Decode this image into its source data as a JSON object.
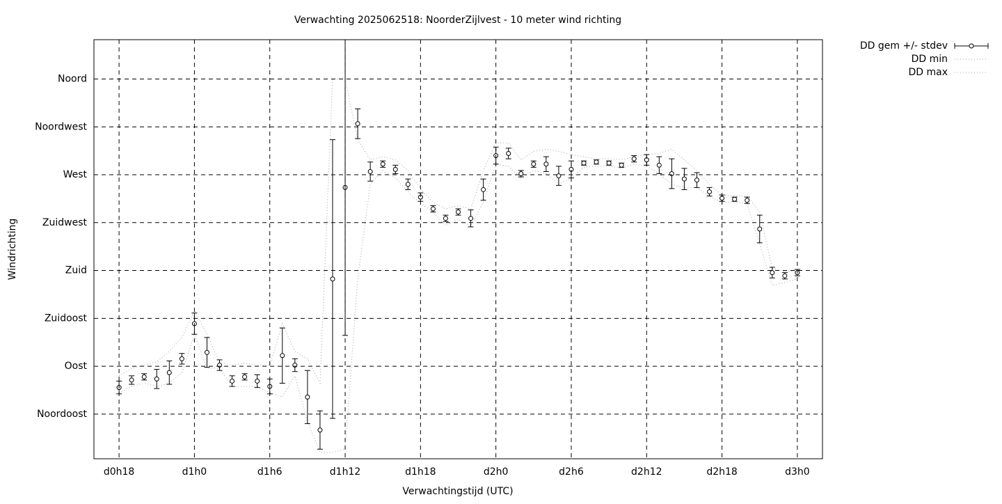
{
  "chart_data": {
    "type": "errorbar",
    "title": "Verwachting 2025062518: NoorderZijlvest - 10 meter wind richting",
    "xlabel": "Verwachtingstijd (UTC)",
    "ylabel": "Windrichting",
    "x": [
      18,
      19,
      20,
      21,
      22,
      23,
      24,
      25,
      26,
      27,
      28,
      29,
      30,
      31,
      32,
      33,
      34,
      35,
      36,
      37,
      38,
      39,
      40,
      41,
      42,
      43,
      44,
      45,
      46,
      47,
      48,
      49,
      50,
      51,
      52,
      53,
      54,
      55,
      56,
      57,
      58,
      59,
      60,
      61,
      62,
      63,
      64,
      65,
      66,
      67,
      68,
      69,
      70,
      71,
      72
    ],
    "series": [
      {
        "name": "DD gem +/- stdev",
        "color": "#000000",
        "style": "errorbar",
        "values": [
          70,
          77,
          80,
          78,
          84,
          97,
          130,
          103,
          91,
          76,
          80,
          76,
          71,
          100,
          91,
          61,
          30,
          172,
          258,
          318,
          273,
          280,
          275,
          261,
          249,
          238,
          229,
          235,
          229,
          256,
          288,
          290,
          271,
          280,
          280,
          269,
          275,
          281,
          282,
          281,
          279,
          285,
          284,
          279,
          271,
          266,
          265,
          254,
          248,
          247,
          246,
          219,
          178,
          175,
          178
        ],
        "errors": [
          6,
          4,
          3,
          9,
          11,
          5,
          10,
          14,
          5,
          5,
          3,
          6,
          7,
          26,
          6,
          25,
          18,
          131,
          139,
          14,
          9,
          3,
          4,
          5,
          4,
          3,
          3,
          3,
          8,
          10,
          8,
          5,
          3,
          3,
          7,
          9,
          8,
          2,
          2,
          2,
          2,
          3,
          5,
          8,
          14,
          10,
          7,
          4,
          3,
          2,
          3,
          13,
          5,
          3,
          3
        ]
      },
      {
        "name": "DD min",
        "color": "#a0a0a0",
        "style": "dotted",
        "values": [
          65,
          71,
          74,
          71,
          74,
          84,
          120,
          88,
          88,
          71,
          71,
          71,
          65,
          61,
          81,
          38,
          9,
          9,
          12,
          173,
          261,
          274,
          267,
          254,
          243,
          235,
          222,
          228,
          222,
          244,
          280,
          278,
          267,
          274,
          271,
          261,
          267,
          277,
          278,
          278,
          276,
          280,
          278,
          271,
          261,
          258,
          258,
          250,
          244,
          244,
          243,
          205,
          166,
          169,
          172
        ]
      },
      {
        "name": "DD max",
        "color": "#a0a0a0",
        "style": "dotted",
        "values": [
          81,
          88,
          91,
          94,
          104,
          117,
          142,
          120,
          94,
          91,
          93,
          91,
          91,
          130,
          104,
          97,
          74,
          360,
          360,
          303,
          284,
          287,
          284,
          274,
          257,
          244,
          238,
          241,
          238,
          274,
          300,
          300,
          284,
          292,
          294,
          292,
          289,
          287,
          285,
          285,
          284,
          287,
          289,
          290,
          294,
          284,
          274,
          261,
          251,
          250,
          250,
          235,
          182,
          179,
          180
        ]
      }
    ],
    "xlim": [
      16,
      74
    ],
    "xticks": [
      {
        "value": 18,
        "label": "d0h18"
      },
      {
        "value": 24,
        "label": "d1h0"
      },
      {
        "value": 30,
        "label": "d1h6"
      },
      {
        "value": 36,
        "label": "d1h12"
      },
      {
        "value": 42,
        "label": "d1h18"
      },
      {
        "value": 48,
        "label": "d2h0"
      },
      {
        "value": 54,
        "label": "d2h6"
      },
      {
        "value": 60,
        "label": "d2h12"
      },
      {
        "value": 66,
        "label": "d2h18"
      },
      {
        "value": 72,
        "label": "d3h0"
      }
    ],
    "ylim": [
      3,
      397
    ],
    "yticks": [
      {
        "value": 45,
        "label": "Noordoost"
      },
      {
        "value": 90,
        "label": "Oost"
      },
      {
        "value": 135,
        "label": "Zuidoost"
      },
      {
        "value": 180,
        "label": "Zuid"
      },
      {
        "value": 225,
        "label": "Zuidwest"
      },
      {
        "value": 270,
        "label": "West"
      },
      {
        "value": 315,
        "label": "Noordwest"
      },
      {
        "value": 360,
        "label": "Noord"
      }
    ],
    "grid": true,
    "legend": "outside-top-right"
  }
}
